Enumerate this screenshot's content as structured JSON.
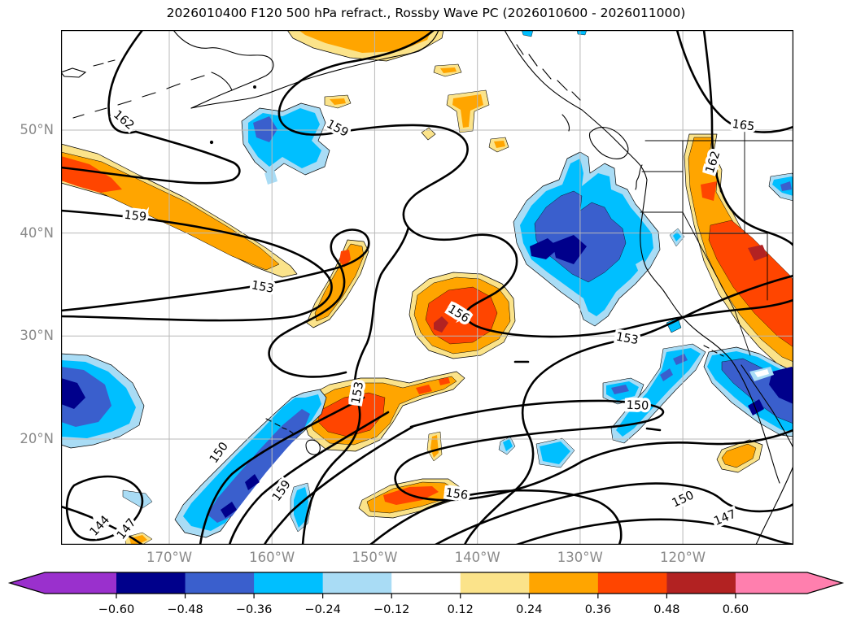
{
  "chart_data": {
    "type": "filled_contour_map",
    "title": "2026010400 F120 500 hPa refract., Rossby Wave PC (2026010600 - 2026011000)",
    "projection": "PlateCarree",
    "extent": {
      "lon_min": -180.5,
      "lon_max": -109.5,
      "lat_min": 9.7,
      "lat_max": 59.7
    },
    "grid": {
      "gridlines_on": true,
      "lon_gridlines": [
        -170,
        -160,
        -150,
        -140,
        -130,
        -120
      ],
      "lat_gridlines": [
        20,
        30,
        40,
        50
      ]
    },
    "contour_levels": [
      144,
      147,
      150,
      153,
      156,
      159,
      162,
      165
    ],
    "contour_labels": [
      {
        "value": "162",
        "lon": -174.4,
        "lat": 51.0,
        "rot": 40
      },
      {
        "value": "159",
        "lon": -173.3,
        "lat": 41.7,
        "rot": 6
      },
      {
        "value": "159",
        "lon": -153.6,
        "lat": 50.2,
        "rot": 28
      },
      {
        "value": "165",
        "lon": -114.1,
        "lat": 50.5,
        "rot": 8
      },
      {
        "value": "162",
        "lon": -117.1,
        "lat": 46.9,
        "rot": -72
      },
      {
        "value": "153",
        "lon": -160.9,
        "lat": 34.8,
        "rot": 10
      },
      {
        "value": "156",
        "lon": -141.8,
        "lat": 32.2,
        "rot": 32
      },
      {
        "value": "153",
        "lon": -125.4,
        "lat": 29.8,
        "rot": 10
      },
      {
        "value": "153",
        "lon": -151.7,
        "lat": 24.5,
        "rot": -80
      },
      {
        "value": "150",
        "lon": -165.2,
        "lat": 18.7,
        "rot": -55
      },
      {
        "value": "159",
        "lon": -159.1,
        "lat": 15.0,
        "rot": -55
      },
      {
        "value": "144",
        "lon": -176.8,
        "lat": 11.6,
        "rot": -48
      },
      {
        "value": "147",
        "lon": -174.2,
        "lat": 11.3,
        "rot": -52
      },
      {
        "value": "156",
        "lon": -142.0,
        "lat": 14.7,
        "rot": 8
      },
      {
        "value": "150",
        "lon": -124.4,
        "lat": 23.3,
        "rot": 2
      },
      {
        "value": "150",
        "lon": -120.0,
        "lat": 14.2,
        "rot": -25
      },
      {
        "value": "147",
        "lon": -115.9,
        "lat": 12.4,
        "rot": -22
      }
    ],
    "shading": {
      "variable": "Rossby Wave PC anomaly",
      "boundaries": [
        -0.6,
        -0.48,
        -0.36,
        -0.24,
        -0.12,
        0.12,
        0.24,
        0.36,
        0.48,
        0.6
      ],
      "extend": "both"
    },
    "anomaly_features": [
      {
        "sign": "negative",
        "center_lon": -135.5,
        "center_lat": 38.5,
        "min_value": -0.55
      },
      {
        "sign": "negative",
        "center_lon": -176.5,
        "center_lat": 25.5,
        "min_value": -0.62
      },
      {
        "sign": "negative",
        "center_lon": -161.5,
        "center_lat": 17.5,
        "min_value": -0.45
      },
      {
        "sign": "negative",
        "center_lon": -112.5,
        "center_lat": 24.5,
        "min_value": -0.6
      },
      {
        "sign": "negative",
        "center_lon": -155.5,
        "center_lat": 49.0,
        "min_value": -0.4
      },
      {
        "sign": "positive",
        "center_lon": -178.5,
        "center_lat": 45.5,
        "max_value": 0.45
      },
      {
        "sign": "positive",
        "center_lon": -141.5,
        "center_lat": 32.5,
        "max_value": 0.5
      },
      {
        "sign": "positive",
        "center_lon": -150.5,
        "center_lat": 22.5,
        "max_value": 0.45
      },
      {
        "sign": "positive",
        "center_lon": -115.5,
        "center_lat": 38.0,
        "max_value": 0.52
      },
      {
        "sign": "positive",
        "center_lon": -147.5,
        "center_lat": 12.5,
        "max_value": 0.45
      }
    ]
  },
  "axes": {
    "lat_ticks": [
      {
        "label": "50°N",
        "lat": 50
      },
      {
        "label": "40°N",
        "lat": 40
      },
      {
        "label": "30°N",
        "lat": 30
      },
      {
        "label": "20°N",
        "lat": 20
      }
    ],
    "lon_ticks": [
      {
        "label": "170°W",
        "lon": -170
      },
      {
        "label": "160°W",
        "lon": -160
      },
      {
        "label": "150°W",
        "lon": -150
      },
      {
        "label": "140°W",
        "lon": -140
      },
      {
        "label": "130°W",
        "lon": -130
      },
      {
        "label": "120°W",
        "lon": -120
      }
    ],
    "tick_label_color": "#8a8a8a"
  },
  "colorbar": {
    "orientation": "horizontal",
    "tick_labels": [
      "−0.60",
      "−0.48",
      "−0.36",
      "−0.24",
      "−0.12",
      "0.12",
      "0.24",
      "0.36",
      "0.48",
      "0.60"
    ],
    "segment_colors": [
      "#00008b",
      "#3a5fcd",
      "#00bfff",
      "#a9dcf5",
      "#ffffff",
      "#fbe38a",
      "#ffa500",
      "#ff4500",
      "#b22222"
    ],
    "under_color": "#9a30cd",
    "over_color": "#ff7fae",
    "outline_color": "#000000"
  },
  "style_colors": {
    "gridline": "#b8b8b8",
    "contour": "#000000",
    "coastline": "#000000",
    "background": "#ffffff"
  }
}
